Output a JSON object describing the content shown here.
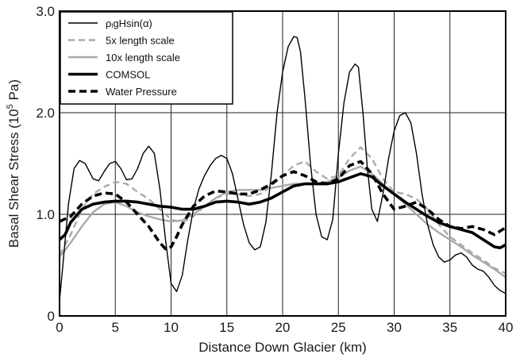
{
  "chart_data": {
    "type": "line",
    "xlabel": "Distance Down Glacier (km)",
    "ylabel_main": "Basal Shear Stress (10",
    "ylabel_sup": "5",
    "ylabel_end": " Pa)",
    "xlim": [
      0,
      40
    ],
    "ylim": [
      0,
      3.0
    ],
    "xticks": [
      {
        "value": 0,
        "label": "0"
      },
      {
        "value": 5,
        "label": "5"
      },
      {
        "value": 10,
        "label": "10"
      },
      {
        "value": 15,
        "label": "15"
      },
      {
        "value": 20,
        "label": "20"
      },
      {
        "value": 25,
        "label": "25"
      },
      {
        "value": 30,
        "label": "30"
      },
      {
        "value": 35,
        "label": "35"
      },
      {
        "value": 40,
        "label": "40"
      }
    ],
    "yticks": [
      {
        "value": 0,
        "label": "0"
      },
      {
        "value": 1,
        "label": "1.0"
      },
      {
        "value": 2,
        "label": "2.0"
      },
      {
        "value": 3,
        "label": "3.0"
      }
    ],
    "grid": true,
    "legend_position": "top-left",
    "series": [
      {
        "name": "ρᵢgHsin(α)",
        "color": "#000000",
        "style": "solid-thin",
        "x": [
          0,
          0.3,
          0.8,
          1.3,
          1.8,
          2.3,
          3.0,
          3.5,
          4.0,
          4.5,
          5.0,
          5.5,
          6.0,
          6.5,
          7.0,
          7.5,
          8.0,
          8.5,
          9.0,
          9.5,
          10.0,
          10.5,
          11.0,
          11.5,
          12.0,
          12.5,
          13.0,
          13.5,
          14.0,
          14.5,
          15.0,
          15.5,
          16.0,
          16.5,
          17.0,
          17.5,
          18.0,
          18.5,
          19.0,
          19.5,
          20.0,
          20.5,
          21.0,
          21.3,
          21.6,
          22.0,
          22.5,
          23.0,
          23.5,
          24.0,
          24.5,
          25.0,
          25.5,
          26.0,
          26.5,
          26.8,
          27.2,
          27.6,
          28.0,
          28.5,
          29.0,
          29.5,
          30.0,
          30.5,
          31.0,
          31.5,
          32.0,
          32.5,
          33.0,
          33.5,
          34.0,
          34.5,
          35.0,
          35.5,
          36.0,
          36.5,
          37.0,
          37.5,
          38.0,
          38.5,
          39.0,
          39.5,
          40.0
        ],
        "y": [
          0.15,
          0.5,
          1.1,
          1.45,
          1.53,
          1.5,
          1.35,
          1.33,
          1.42,
          1.5,
          1.52,
          1.45,
          1.34,
          1.35,
          1.45,
          1.6,
          1.67,
          1.6,
          1.25,
          0.75,
          0.32,
          0.24,
          0.4,
          0.75,
          1.05,
          1.25,
          1.38,
          1.48,
          1.55,
          1.58,
          1.55,
          1.4,
          1.15,
          0.9,
          0.72,
          0.65,
          0.68,
          0.92,
          1.4,
          2.0,
          2.4,
          2.65,
          2.75,
          2.74,
          2.6,
          2.15,
          1.5,
          1.0,
          0.78,
          0.75,
          0.95,
          1.6,
          2.1,
          2.4,
          2.48,
          2.45,
          2.0,
          1.45,
          1.05,
          0.93,
          1.2,
          1.55,
          1.82,
          1.97,
          2.0,
          1.9,
          1.6,
          1.2,
          0.9,
          0.7,
          0.58,
          0.53,
          0.55,
          0.6,
          0.62,
          0.58,
          0.5,
          0.46,
          0.44,
          0.38,
          0.3,
          0.25,
          0.22
        ]
      },
      {
        "name": "5x length scale",
        "color": "#aaaaaa",
        "style": "dashed",
        "x": [
          0,
          1,
          2,
          3,
          4,
          5,
          6,
          7,
          8,
          9,
          10,
          11,
          12,
          13,
          14,
          15,
          16,
          17,
          18,
          19,
          20,
          21,
          22,
          23,
          24,
          25,
          26,
          27,
          28,
          29,
          30,
          31,
          32,
          33,
          34,
          35,
          36,
          37,
          38,
          39,
          40
        ],
        "y": [
          0.6,
          0.8,
          1.05,
          1.2,
          1.27,
          1.32,
          1.3,
          1.22,
          1.15,
          1.05,
          0.95,
          0.92,
          0.98,
          1.08,
          1.16,
          1.2,
          1.2,
          1.18,
          1.2,
          1.28,
          1.38,
          1.48,
          1.52,
          1.42,
          1.35,
          1.38,
          1.55,
          1.66,
          1.55,
          1.35,
          1.22,
          1.2,
          1.15,
          1.05,
          0.9,
          0.78,
          0.7,
          0.62,
          0.55,
          0.47,
          0.42
        ]
      },
      {
        "name": "10x length scale",
        "color": "#aaaaaa",
        "style": "solid",
        "x": [
          0,
          1,
          2,
          3,
          4,
          5,
          6,
          7,
          8,
          9,
          10,
          11,
          12,
          13,
          14,
          15,
          16,
          17,
          18,
          19,
          20,
          21,
          22,
          23,
          24,
          25,
          26,
          27,
          28,
          29,
          30,
          31,
          32,
          33,
          34,
          35,
          36,
          37,
          38,
          39,
          40
        ],
        "y": [
          0.58,
          0.72,
          0.88,
          1.02,
          1.1,
          1.12,
          1.08,
          1.02,
          0.98,
          0.95,
          0.93,
          0.94,
          1.0,
          1.08,
          1.16,
          1.22,
          1.24,
          1.24,
          1.24,
          1.26,
          1.28,
          1.3,
          1.3,
          1.3,
          1.32,
          1.36,
          1.43,
          1.47,
          1.4,
          1.3,
          1.2,
          1.1,
          1.0,
          0.9,
          0.82,
          0.75,
          0.68,
          0.6,
          0.53,
          0.46,
          0.38
        ]
      },
      {
        "name": "COMSOL",
        "color": "#000000",
        "style": "solid-thick",
        "x": [
          0,
          0.5,
          1,
          2,
          3,
          4,
          5,
          6,
          7,
          8,
          9,
          10,
          11,
          12,
          13,
          14,
          15,
          16,
          17,
          18,
          19,
          20,
          21,
          22,
          23,
          24,
          25,
          26,
          27,
          28,
          29,
          30,
          31,
          32,
          33,
          34,
          35,
          36,
          37,
          38,
          39,
          39.5,
          40
        ],
        "y": [
          0.75,
          0.8,
          0.92,
          1.05,
          1.1,
          1.12,
          1.13,
          1.13,
          1.12,
          1.1,
          1.08,
          1.07,
          1.05,
          1.05,
          1.08,
          1.12,
          1.13,
          1.12,
          1.1,
          1.12,
          1.16,
          1.22,
          1.28,
          1.3,
          1.3,
          1.3,
          1.32,
          1.36,
          1.4,
          1.37,
          1.28,
          1.2,
          1.12,
          1.05,
          0.98,
          0.92,
          0.88,
          0.85,
          0.82,
          0.75,
          0.68,
          0.67,
          0.7
        ]
      },
      {
        "name": "Water Pressure",
        "color": "#000000",
        "style": "dashed-thick",
        "x": [
          0,
          1,
          2,
          3,
          4,
          5,
          6,
          7,
          8,
          9,
          9.5,
          10,
          10.5,
          11,
          12,
          13,
          14,
          15,
          16,
          17,
          18,
          19,
          20,
          21,
          22,
          23,
          24,
          25,
          26,
          27,
          28,
          29,
          30,
          31,
          32,
          33,
          34,
          35,
          36,
          37,
          38,
          39,
          40
        ],
        "y": [
          0.93,
          0.98,
          1.1,
          1.18,
          1.21,
          1.2,
          1.12,
          1.0,
          0.88,
          0.72,
          0.66,
          0.68,
          0.78,
          0.9,
          1.08,
          1.18,
          1.23,
          1.22,
          1.2,
          1.2,
          1.24,
          1.3,
          1.38,
          1.42,
          1.38,
          1.32,
          1.3,
          1.35,
          1.48,
          1.52,
          1.4,
          1.2,
          1.05,
          1.08,
          1.12,
          1.05,
          0.95,
          0.88,
          0.86,
          0.88,
          0.85,
          0.8,
          0.87
        ]
      }
    ]
  }
}
